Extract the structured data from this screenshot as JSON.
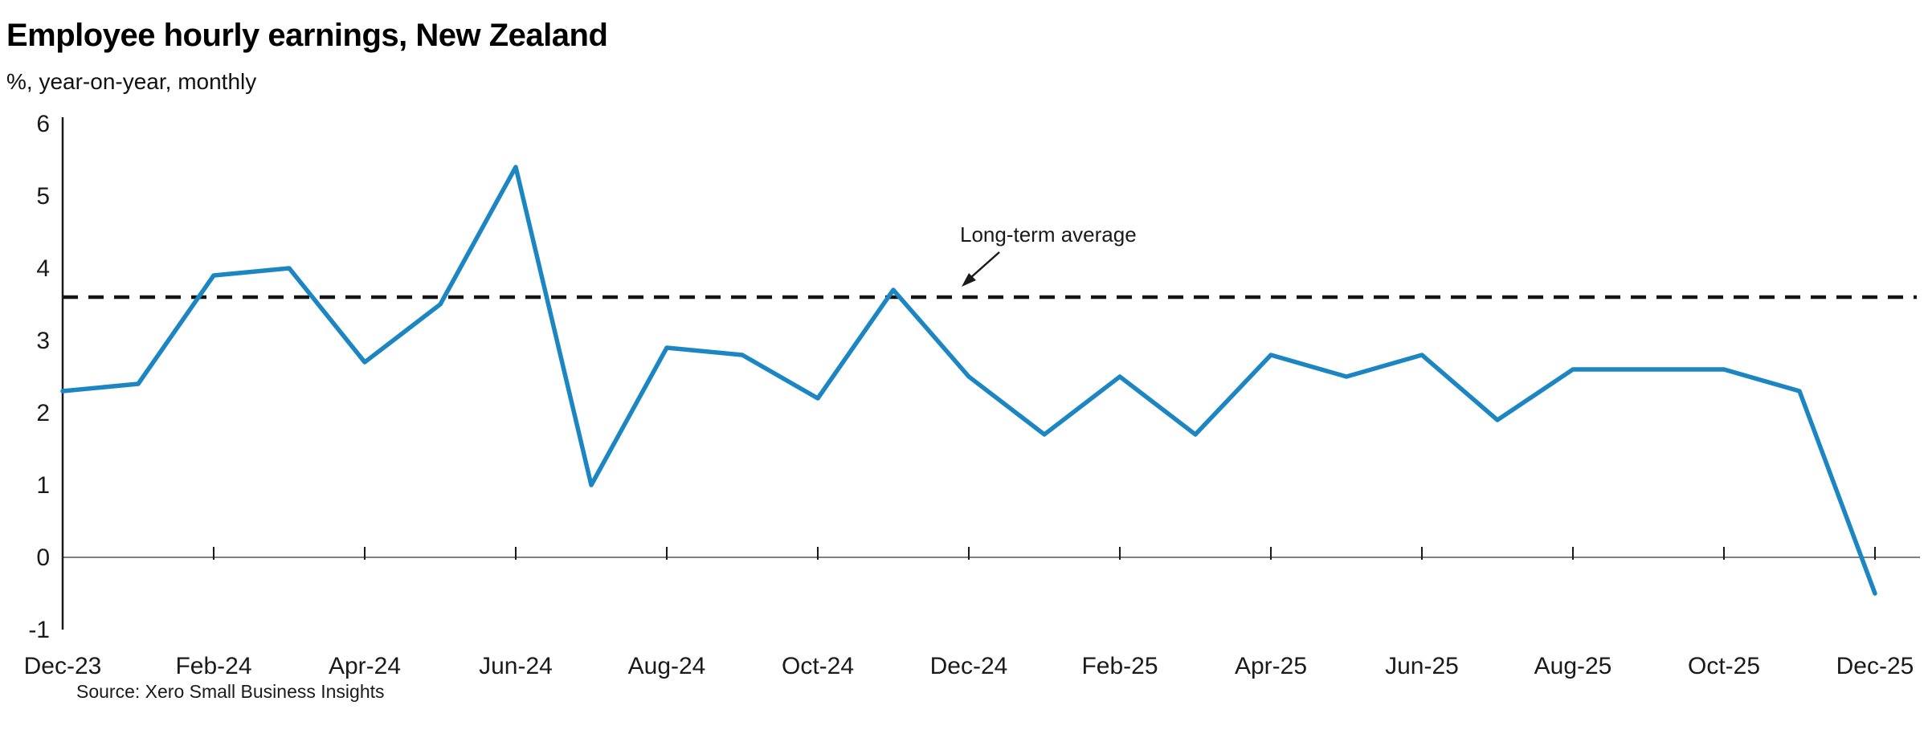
{
  "header": {
    "title": "Employee hourly earnings, New Zealand",
    "subtitle": "%, year-on-year, monthly"
  },
  "annotation": {
    "label": "Long-term average"
  },
  "source": "Source: Xero Small Business Insights",
  "colors": {
    "line": "#1b86c2",
    "average_line": "#141414",
    "axis_spine": "#1a1a1a",
    "zero_line": "#808080",
    "text": "#1a1a1a",
    "background": "#ffffff"
  },
  "chart_data": {
    "type": "line",
    "title": "Employee hourly earnings, New Zealand",
    "subtitle": "%, year-on-year, monthly",
    "xlabel": "",
    "ylabel": "%, year-on-year",
    "x": [
      "Dec-23",
      "Jan-24",
      "Feb-24",
      "Mar-24",
      "Apr-24",
      "May-24",
      "Jun-24",
      "Jul-24",
      "Aug-24",
      "Sep-24",
      "Oct-24",
      "Nov-24",
      "Dec-24",
      "Jan-25",
      "Feb-25",
      "Mar-25",
      "Apr-25",
      "May-25",
      "Jun-25",
      "Jul-25",
      "Aug-25",
      "Sep-25",
      "Oct-25",
      "Nov-25",
      "Dec-25"
    ],
    "x_tick_labels": [
      "Dec-23",
      "Feb-24",
      "Apr-24",
      "Jun-24",
      "Aug-24",
      "Oct-24",
      "Dec-24",
      "Feb-25",
      "Apr-25",
      "Jun-25",
      "Aug-25",
      "Oct-25",
      "Dec-25"
    ],
    "series": [
      {
        "name": "Employee hourly earnings, year-on-year %",
        "values": [
          2.3,
          2.4,
          3.9,
          4.0,
          2.7,
          3.5,
          5.4,
          1.0,
          2.9,
          2.8,
          2.2,
          3.7,
          2.5,
          1.7,
          2.5,
          1.7,
          2.8,
          2.5,
          2.8,
          1.9,
          2.6,
          2.6,
          2.6,
          2.3,
          -0.5
        ]
      }
    ],
    "reference_lines": [
      {
        "label": "Long-term average",
        "value": 3.6,
        "style": "dashed"
      }
    ],
    "ylim": [
      -1,
      6
    ],
    "yticks": [
      6,
      5,
      4,
      3,
      2,
      1,
      0,
      -1
    ],
    "grid": false,
    "legend_position": "none",
    "annotations": [
      "Long-term average"
    ]
  }
}
